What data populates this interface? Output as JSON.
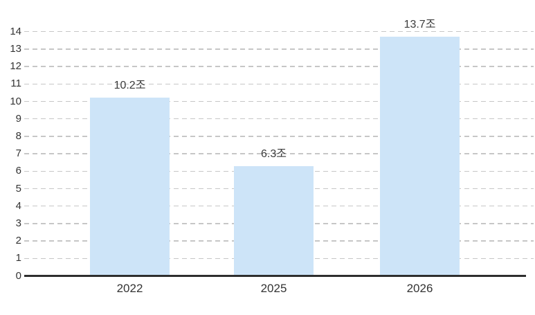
{
  "chart_data": {
    "type": "bar",
    "title": "",
    "xlabel": "",
    "ylabel": "",
    "categories": [
      "2022",
      "2025",
      "2026"
    ],
    "values": [
      10.2,
      6.3,
      13.7
    ],
    "data_labels": [
      "10.2조",
      "6.3조",
      "13.7조"
    ],
    "ylim": [
      0,
      14
    ],
    "ytick_step": 1,
    "yticks": [
      "0",
      "1",
      "2",
      "3",
      "4",
      "5",
      "6",
      "7",
      "8",
      "9",
      "10",
      "11",
      "12",
      "13",
      "14"
    ],
    "grid": "horizontal-dashed",
    "legend_position": "none",
    "colors": {
      "bar_fill": "#cde4f8",
      "gridline": "#c6c6c6",
      "axis_line": "#2e2e2e",
      "label_text": "#3b3b3b",
      "tick_text": "#333333"
    }
  }
}
